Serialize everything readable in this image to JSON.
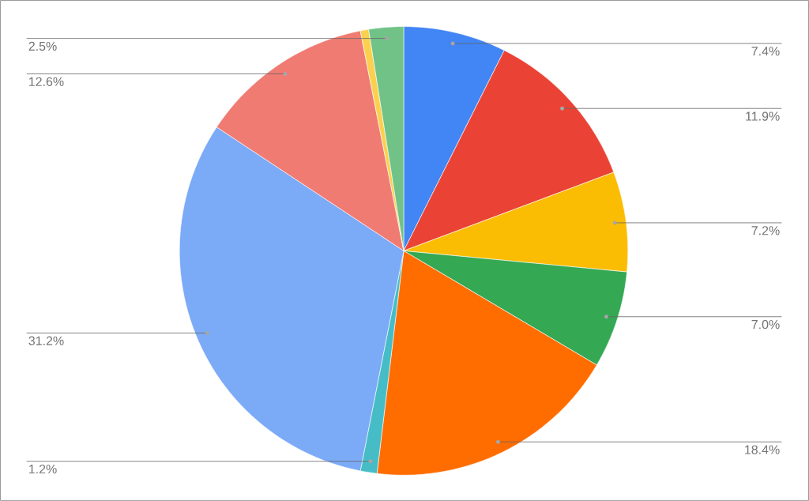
{
  "chart_data": {
    "type": "pie",
    "categories": [
      null,
      null,
      null,
      null,
      null,
      null,
      null,
      null,
      null,
      null
    ],
    "values": [
      7.4,
      11.9,
      7.2,
      7.0,
      18.4,
      1.2,
      31.2,
      12.6,
      0.6,
      2.5
    ],
    "colors": [
      "#4285f4",
      "#ea4335",
      "#fbbc04",
      "#34a853",
      "#ff6d01",
      "#46bdc6",
      "#7baaf7",
      "#f07b72",
      "#fcd04f",
      "#71c287"
    ],
    "value_labels": [
      "7.4%",
      "11.9%",
      "7.2%",
      "7.0%",
      "18.4%",
      "1.2%",
      "31.2%",
      "12.6%",
      null,
      "2.5%"
    ]
  }
}
